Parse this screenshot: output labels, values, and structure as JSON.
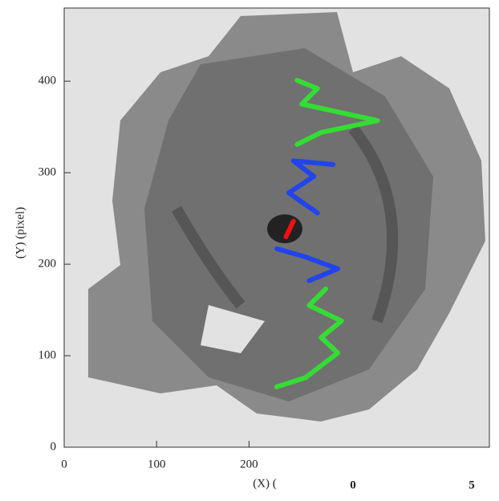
{
  "chart_data": {
    "type": "line",
    "xlabel": "(X) (",
    "ylabel": "(Y) (pixel)",
    "annotations": [
      "0",
      "5"
    ],
    "xlim": [
      0,
      460
    ],
    "xticks": [
      0,
      100,
      200
    ],
    "ylim": [
      0,
      480
    ],
    "yticks": [
      0,
      100,
      200,
      300,
      400
    ],
    "series": [
      {
        "color": "#33dd33",
        "x": [
          230,
          261,
          296,
          278,
          300,
          265,
          283
        ],
        "values": [
          66,
          76,
          103,
          120,
          138,
          155,
          173
        ]
      },
      {
        "color": "#2244ee",
        "x": [
          265,
          296,
          261,
          230
        ],
        "values": [
          182,
          195,
          208,
          217
        ]
      },
      {
        "color": "#ee1111",
        "x": [
          240,
          248
        ],
        "values": [
          230,
          247
        ]
      },
      {
        "color": "#2244ee",
        "x": [
          274,
          243,
          270,
          248,
          291
        ],
        "values": [
          256,
          278,
          296,
          313,
          309
        ]
      },
      {
        "color": "#33dd33",
        "x": [
          252,
          278,
          339,
          257,
          274,
          252
        ],
        "values": [
          331,
          344,
          357,
          375,
          392,
          401
        ]
      }
    ]
  }
}
